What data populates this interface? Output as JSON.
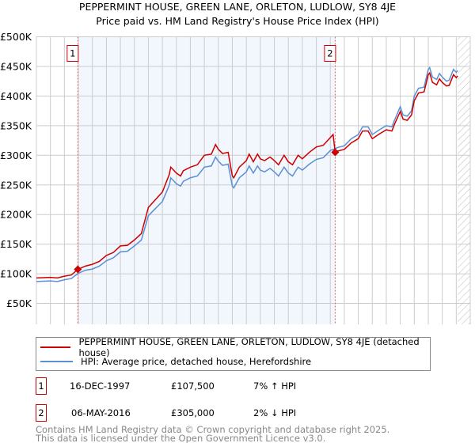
{
  "chart_data": {
    "type": "line",
    "title": "PEPPERMINT HOUSE, GREEN LANE, ORLETON, LUDLOW, SY8 4JE",
    "subtitle": "Price paid vs. HM Land Registry's House Price Index (HPI)",
    "xlim": [
      1995,
      2026
    ],
    "ylim": [
      0,
      500000
    ],
    "x_ticks": [
      "1995",
      "1996",
      "1997",
      "1998",
      "1999",
      "2000",
      "2001",
      "2002",
      "2003",
      "2004",
      "2005",
      "2006",
      "2007",
      "2008",
      "2009",
      "2010",
      "2011",
      "2012",
      "2013",
      "2014",
      "2015",
      "2016",
      "2017",
      "2018",
      "2019",
      "2020",
      "2021",
      "2022",
      "2023",
      "2024",
      "2025",
      "2026"
    ],
    "y_ticks": [
      {
        "v": 0,
        "label": "£0"
      },
      {
        "v": 50000,
        "label": "£50K"
      },
      {
        "v": 100000,
        "label": "£100K"
      },
      {
        "v": 150000,
        "label": "£150K"
      },
      {
        "v": 200000,
        "label": "£200K"
      },
      {
        "v": 250000,
        "label": "£250K"
      },
      {
        "v": 300000,
        "label": "£300K"
      },
      {
        "v": 350000,
        "label": "£350K"
      },
      {
        "v": 400000,
        "label": "£400K"
      },
      {
        "v": 450000,
        "label": "£450K"
      },
      {
        "v": 500000,
        "label": "£500K"
      }
    ],
    "grid": true,
    "shaded_range": [
      1997.96,
      2016.35
    ],
    "forecast_hatch_from": 2025.1,
    "series": [
      {
        "name": "PEPPERMINT HOUSE, GREEN LANE, ORLETON, LUDLOW, SY8 4JE (detached house)",
        "color": "#cc0000",
        "x": [
          1995,
          1996,
          1996.5,
          1997,
          1997.5,
          1997.96,
          1998.5,
          1999,
          1999.5,
          2000,
          2000.5,
          2001,
          2001.5,
          2002,
          2002.5,
          2003,
          2003.5,
          2004,
          2004.5,
          2004.6,
          2005,
          2005.3,
          2005.5,
          2006,
          2006.5,
          2007,
          2007.5,
          2007.8,
          2008,
          2008.3,
          2008.7,
          2009,
          2009.1,
          2009.5,
          2010,
          2010.2,
          2010.5,
          2010.8,
          2011,
          2011.3,
          2011.7,
          2012,
          2012.3,
          2012.7,
          2013,
          2013.3,
          2013.7,
          2014,
          2014.5,
          2015,
          2015.5,
          2016,
          2016.2,
          2016.35,
          2016.5,
          2017,
          2017.5,
          2018,
          2018.3,
          2018.7,
          2019,
          2019.5,
          2020,
          2020.4,
          2020.6,
          2021,
          2021.2,
          2021.5,
          2021.8,
          2022,
          2022.3,
          2022.7,
          2023,
          2023.1,
          2023.3,
          2023.6,
          2023.8,
          2024,
          2024.3,
          2024.5,
          2024.8,
          2025,
          2025.1
        ],
        "y": [
          93,
          94,
          93,
          96,
          98,
          107.5,
          113,
          116,
          121,
          131,
          136,
          147,
          148,
          157,
          168,
          212,
          225,
          238,
          268,
          280,
          270,
          265,
          274,
          280,
          284,
          300,
          302,
          318,
          310,
          303,
          305,
          265,
          262,
          280,
          291,
          302,
          289,
          302,
          294,
          291,
          297,
          291,
          284,
          300,
          289,
          284,
          300,
          294,
          305,
          314,
          317,
          330,
          335,
          305,
          307,
          310,
          321,
          328,
          341,
          341,
          328,
          336,
          343,
          341,
          353,
          374,
          361,
          359,
          368,
          392,
          405,
          407,
          436,
          439,
          423,
          419,
          429,
          423,
          417,
          418,
          436,
          431,
          434
        ]
      },
      {
        "name": "HPI: Average price, detached house, Herefordshire",
        "color": "#5b8fd6",
        "x": [
          1995,
          1996,
          1996.5,
          1997,
          1997.5,
          1997.96,
          1998.5,
          1999,
          1999.5,
          2000,
          2000.5,
          2001,
          2001.5,
          2002,
          2002.5,
          2003,
          2003.5,
          2004,
          2004.5,
          2004.6,
          2005,
          2005.3,
          2005.5,
          2006,
          2006.5,
          2007,
          2007.5,
          2007.8,
          2008,
          2008.3,
          2008.7,
          2009,
          2009.1,
          2009.5,
          2010,
          2010.2,
          2010.5,
          2010.8,
          2011,
          2011.3,
          2011.7,
          2012,
          2012.3,
          2012.7,
          2013,
          2013.3,
          2013.7,
          2014,
          2014.5,
          2015,
          2015.5,
          2016,
          2016.2,
          2016.35,
          2016.5,
          2017,
          2017.5,
          2018,
          2018.3,
          2018.7,
          2019,
          2019.5,
          2020,
          2020.4,
          2020.6,
          2021,
          2021.2,
          2021.5,
          2021.8,
          2022,
          2022.3,
          2022.7,
          2023,
          2023.1,
          2023.3,
          2023.6,
          2023.8,
          2024,
          2024.3,
          2024.5,
          2024.8,
          2025,
          2025.1
        ],
        "y": [
          87,
          88,
          87,
          90,
          92,
          100.5,
          106,
          108,
          113,
          122,
          127,
          137,
          138,
          147,
          157,
          198,
          210,
          222,
          250,
          262,
          252,
          248,
          256,
          262,
          265,
          280,
          282,
          297,
          290,
          283,
          285,
          248,
          245,
          262,
          272,
          282,
          270,
          282,
          275,
          272,
          278,
          272,
          265,
          280,
          270,
          265,
          280,
          275,
          285,
          293,
          296,
          308,
          310,
          311,
          313,
          316,
          328,
          335,
          348,
          348,
          335,
          343,
          350,
          348,
          360,
          382,
          368,
          366,
          375,
          400,
          413,
          415,
          445,
          448,
          432,
          428,
          438,
          432,
          425,
          427,
          445,
          440,
          443
        ]
      }
    ],
    "y_units": "thousands GBP",
    "annotations": [
      {
        "label": "1",
        "x": 1997.96,
        "y": 107.5
      },
      {
        "label": "2",
        "x": 2016.35,
        "y": 305
      }
    ]
  },
  "legend": {
    "red_label": "PEPPERMINT HOUSE, GREEN LANE, ORLETON, LUDLOW, SY8 4JE (detached house)",
    "blue_label": "HPI: Average price, detached house, Herefordshire"
  },
  "sales": [
    {
      "num": "1",
      "date": "16-DEC-1997",
      "price": "£107,500",
      "hpi": "7% ↑ HPI"
    },
    {
      "num": "2",
      "date": "06-MAY-2016",
      "price": "£305,000",
      "hpi": "2% ↓ HPI"
    }
  ],
  "footer": {
    "line1": "Contains HM Land Registry data © Crown copyright and database right 2025.",
    "line2": "This data is licensed under the Open Government Licence v3.0."
  }
}
